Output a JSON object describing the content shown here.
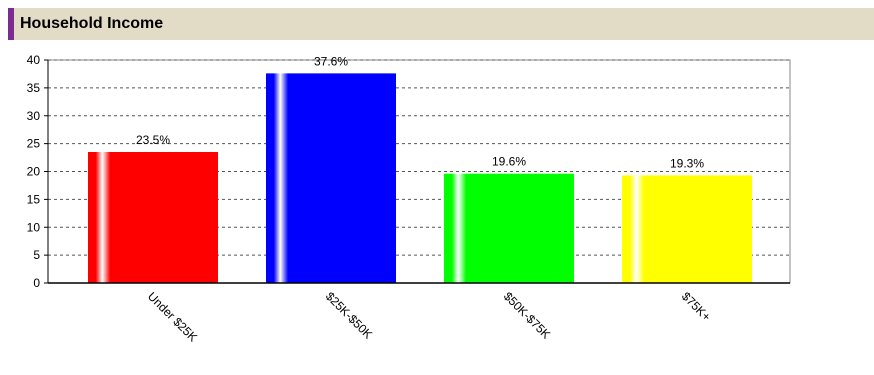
{
  "header": {
    "title": "Household Income",
    "accent_color": "#7a2d8f",
    "background_color": "#e2dcc6"
  },
  "chart_data": {
    "type": "bar",
    "categories": [
      "Under $25K",
      "$25K-$50K",
      "$50K-$75K",
      "$75K+"
    ],
    "values": [
      23.5,
      37.6,
      19.6,
      19.3
    ],
    "data_labels": [
      "23.5%",
      "37.6%",
      "19.6%",
      "19.3%"
    ],
    "colors": [
      "#ff0000",
      "#0000ff",
      "#00ff00",
      "#ffff00"
    ],
    "ylim": [
      0,
      40
    ],
    "yticks": [
      0,
      5,
      10,
      15,
      20,
      25,
      30,
      35,
      40
    ],
    "grid": true,
    "grid_style": "dashed",
    "legend": "none",
    "title": "",
    "xlabel": "",
    "ylabel": ""
  }
}
